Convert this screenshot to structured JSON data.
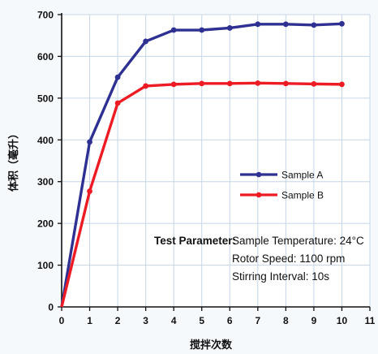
{
  "chart_data": {
    "type": "line",
    "xlabel": "搅拌次数",
    "ylabel": "体积（毫升）",
    "x": [
      0,
      1,
      2,
      3,
      4,
      5,
      6,
      7,
      8,
      9,
      10
    ],
    "xlim": [
      0,
      11
    ],
    "ylim": [
      0,
      700
    ],
    "xticks": [
      0,
      1,
      2,
      3,
      4,
      5,
      6,
      7,
      8,
      9,
      10,
      11
    ],
    "yticks": [
      0,
      100,
      200,
      300,
      400,
      500,
      600,
      700
    ],
    "grid": true,
    "legend_position": "right",
    "series": [
      {
        "name": "Sample A",
        "color": "#2e3192",
        "marker": "circle",
        "values": [
          0,
          395,
          550,
          636,
          663,
          663,
          668,
          677,
          677,
          675,
          678
        ]
      },
      {
        "name": "Sample B",
        "color": "#ed1c24",
        "marker": "circle",
        "values": [
          0,
          277,
          488,
          529,
          533,
          535,
          535,
          536,
          535,
          534,
          533
        ]
      }
    ],
    "annotation": {
      "heading": "Test Parameter:",
      "lines": [
        "Sample Temperature: 24°C",
        "Rotor Speed: 1100 rpm",
        "Stirring Interval: 10s"
      ]
    }
  }
}
